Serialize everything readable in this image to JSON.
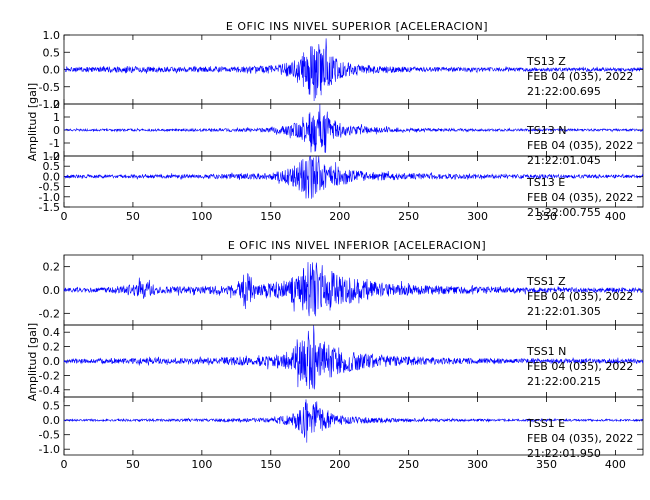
{
  "colors": {
    "trace": "#0000ff",
    "axis": "#000000",
    "background": "#ffffff"
  },
  "chart_data": [
    {
      "type": "line",
      "title": "E OFIC INS NIVEL SUPERIOR [ACELERACION]",
      "ylabel": "Amplitud [gal]",
      "xlabel": "",
      "xlim": [
        0,
        420
      ],
      "x_ticks": [
        "0",
        "50",
        "100",
        "150",
        "200",
        "250",
        "300",
        "350",
        "400"
      ],
      "grid": false,
      "panels": [
        {
          "channel": "TS13   Z",
          "date": "FEB 04 (035), 2022",
          "time": "21:22:00.695",
          "ylim": [
            -1.0,
            1.0
          ],
          "y_ticks": [
            "1.0",
            "0.5",
            "0.0",
            "-0.5",
            "-1.0"
          ],
          "envelope": {
            "x": [
              0,
              20,
              45,
              60,
              100,
              140,
              155,
              165,
              172,
              178,
              182,
              186,
              190,
              195,
              200,
              210,
              230,
              260,
              300,
              350,
              420
            ],
            "amp": [
              0.06,
              0.07,
              0.1,
              0.08,
              0.08,
              0.09,
              0.14,
              0.24,
              0.4,
              0.72,
              0.95,
              0.78,
              0.6,
              0.42,
              0.28,
              0.16,
              0.1,
              0.07,
              0.06,
              0.05,
              0.05
            ]
          }
        },
        {
          "channel": "TS13   N",
          "date": "FEB 04 (035), 2022",
          "time": "21:22:01.045",
          "ylim": [
            -2,
            2
          ],
          "y_ticks": [
            "2",
            "1",
            "0",
            "-1",
            "-2"
          ],
          "envelope": {
            "x": [
              0,
              50,
              100,
              150,
              165,
              175,
              182,
              188,
              195,
              205,
              220,
              250,
              300,
              420
            ],
            "amp": [
              0.08,
              0.09,
              0.1,
              0.16,
              0.45,
              0.95,
              1.85,
              1.25,
              0.85,
              0.45,
              0.25,
              0.14,
              0.1,
              0.08
            ]
          }
        },
        {
          "channel": "TS13   E",
          "date": "FEB 04 (035), 2022",
          "time": "21:22:00.755",
          "ylim": [
            -1.5,
            1.0
          ],
          "y_ticks": [
            "1.0",
            "0.5",
            "0.0",
            "-0.5",
            "-1.0",
            "-1.5"
          ],
          "envelope": {
            "x": [
              0,
              50,
              100,
              150,
              165,
              172,
              178,
              182,
              188,
              195,
              210,
              230,
              260,
              300,
              420
            ],
            "amp": [
              0.08,
              0.09,
              0.1,
              0.16,
              0.42,
              0.8,
              1.4,
              1.1,
              0.8,
              0.55,
              0.3,
              0.2,
              0.14,
              0.1,
              0.08
            ]
          }
        }
      ]
    },
    {
      "type": "line",
      "title": "E OFIC INS NIVEL INFERIOR [ACELERACION]",
      "ylabel": "Amplitud [gal]",
      "xlabel": "",
      "xlim": [
        0,
        420
      ],
      "x_ticks": [
        "0",
        "50",
        "100",
        "150",
        "200",
        "250",
        "300",
        "350",
        "400"
      ],
      "grid": false,
      "panels": [
        {
          "channel": "TSS1   Z",
          "date": "FEB 04 (035), 2022",
          "time": "21:22:01.305",
          "ylim": [
            -0.3,
            0.3
          ],
          "y_ticks": [
            "0.2",
            "0.0",
            "-0.2"
          ],
          "envelope": {
            "x": [
              0,
              30,
              50,
              58,
              70,
              100,
              125,
              132,
              140,
              160,
              170,
              178,
              182,
              190,
              200,
              215,
              240,
              270,
              300,
              350,
              420
            ],
            "amp": [
              0.02,
              0.02,
              0.05,
              0.08,
              0.03,
              0.03,
              0.05,
              0.17,
              0.05,
              0.08,
              0.14,
              0.24,
              0.27,
              0.2,
              0.14,
              0.09,
              0.05,
              0.04,
              0.03,
              0.02,
              0.02
            ]
          }
        },
        {
          "channel": "TSS1   N",
          "date": "FEB 04 (035), 2022",
          "time": "21:22:00.215",
          "ylim": [
            -0.5,
            0.5
          ],
          "y_ticks": [
            "0.4",
            "0.2",
            "0.0",
            "-0.2",
            "-0.4"
          ],
          "envelope": {
            "x": [
              0,
              50,
              100,
              150,
              165,
              172,
              178,
              182,
              190,
              200,
              215,
              240,
              270,
              300,
              350,
              420
            ],
            "amp": [
              0.03,
              0.04,
              0.04,
              0.08,
              0.15,
              0.3,
              0.44,
              0.4,
              0.26,
              0.18,
              0.12,
              0.07,
              0.05,
              0.04,
              0.03,
              0.03
            ]
          }
        },
        {
          "channel": "TSS1   E",
          "date": "FEB 04 (035), 2022",
          "time": "21:22:01.950",
          "ylim": [
            -1.2,
            0.8
          ],
          "y_ticks": [
            "0.5",
            "0.0",
            "-0.5",
            "-1.0"
          ],
          "envelope": {
            "x": [
              0,
              50,
              100,
              150,
              165,
              172,
              176,
              180,
              188,
              195,
              210,
              240,
              270,
              300,
              420
            ],
            "amp": [
              0.03,
              0.04,
              0.05,
              0.08,
              0.2,
              0.45,
              0.8,
              0.6,
              0.35,
              0.22,
              0.12,
              0.07,
              0.05,
              0.04,
              0.03
            ]
          }
        }
      ]
    }
  ]
}
